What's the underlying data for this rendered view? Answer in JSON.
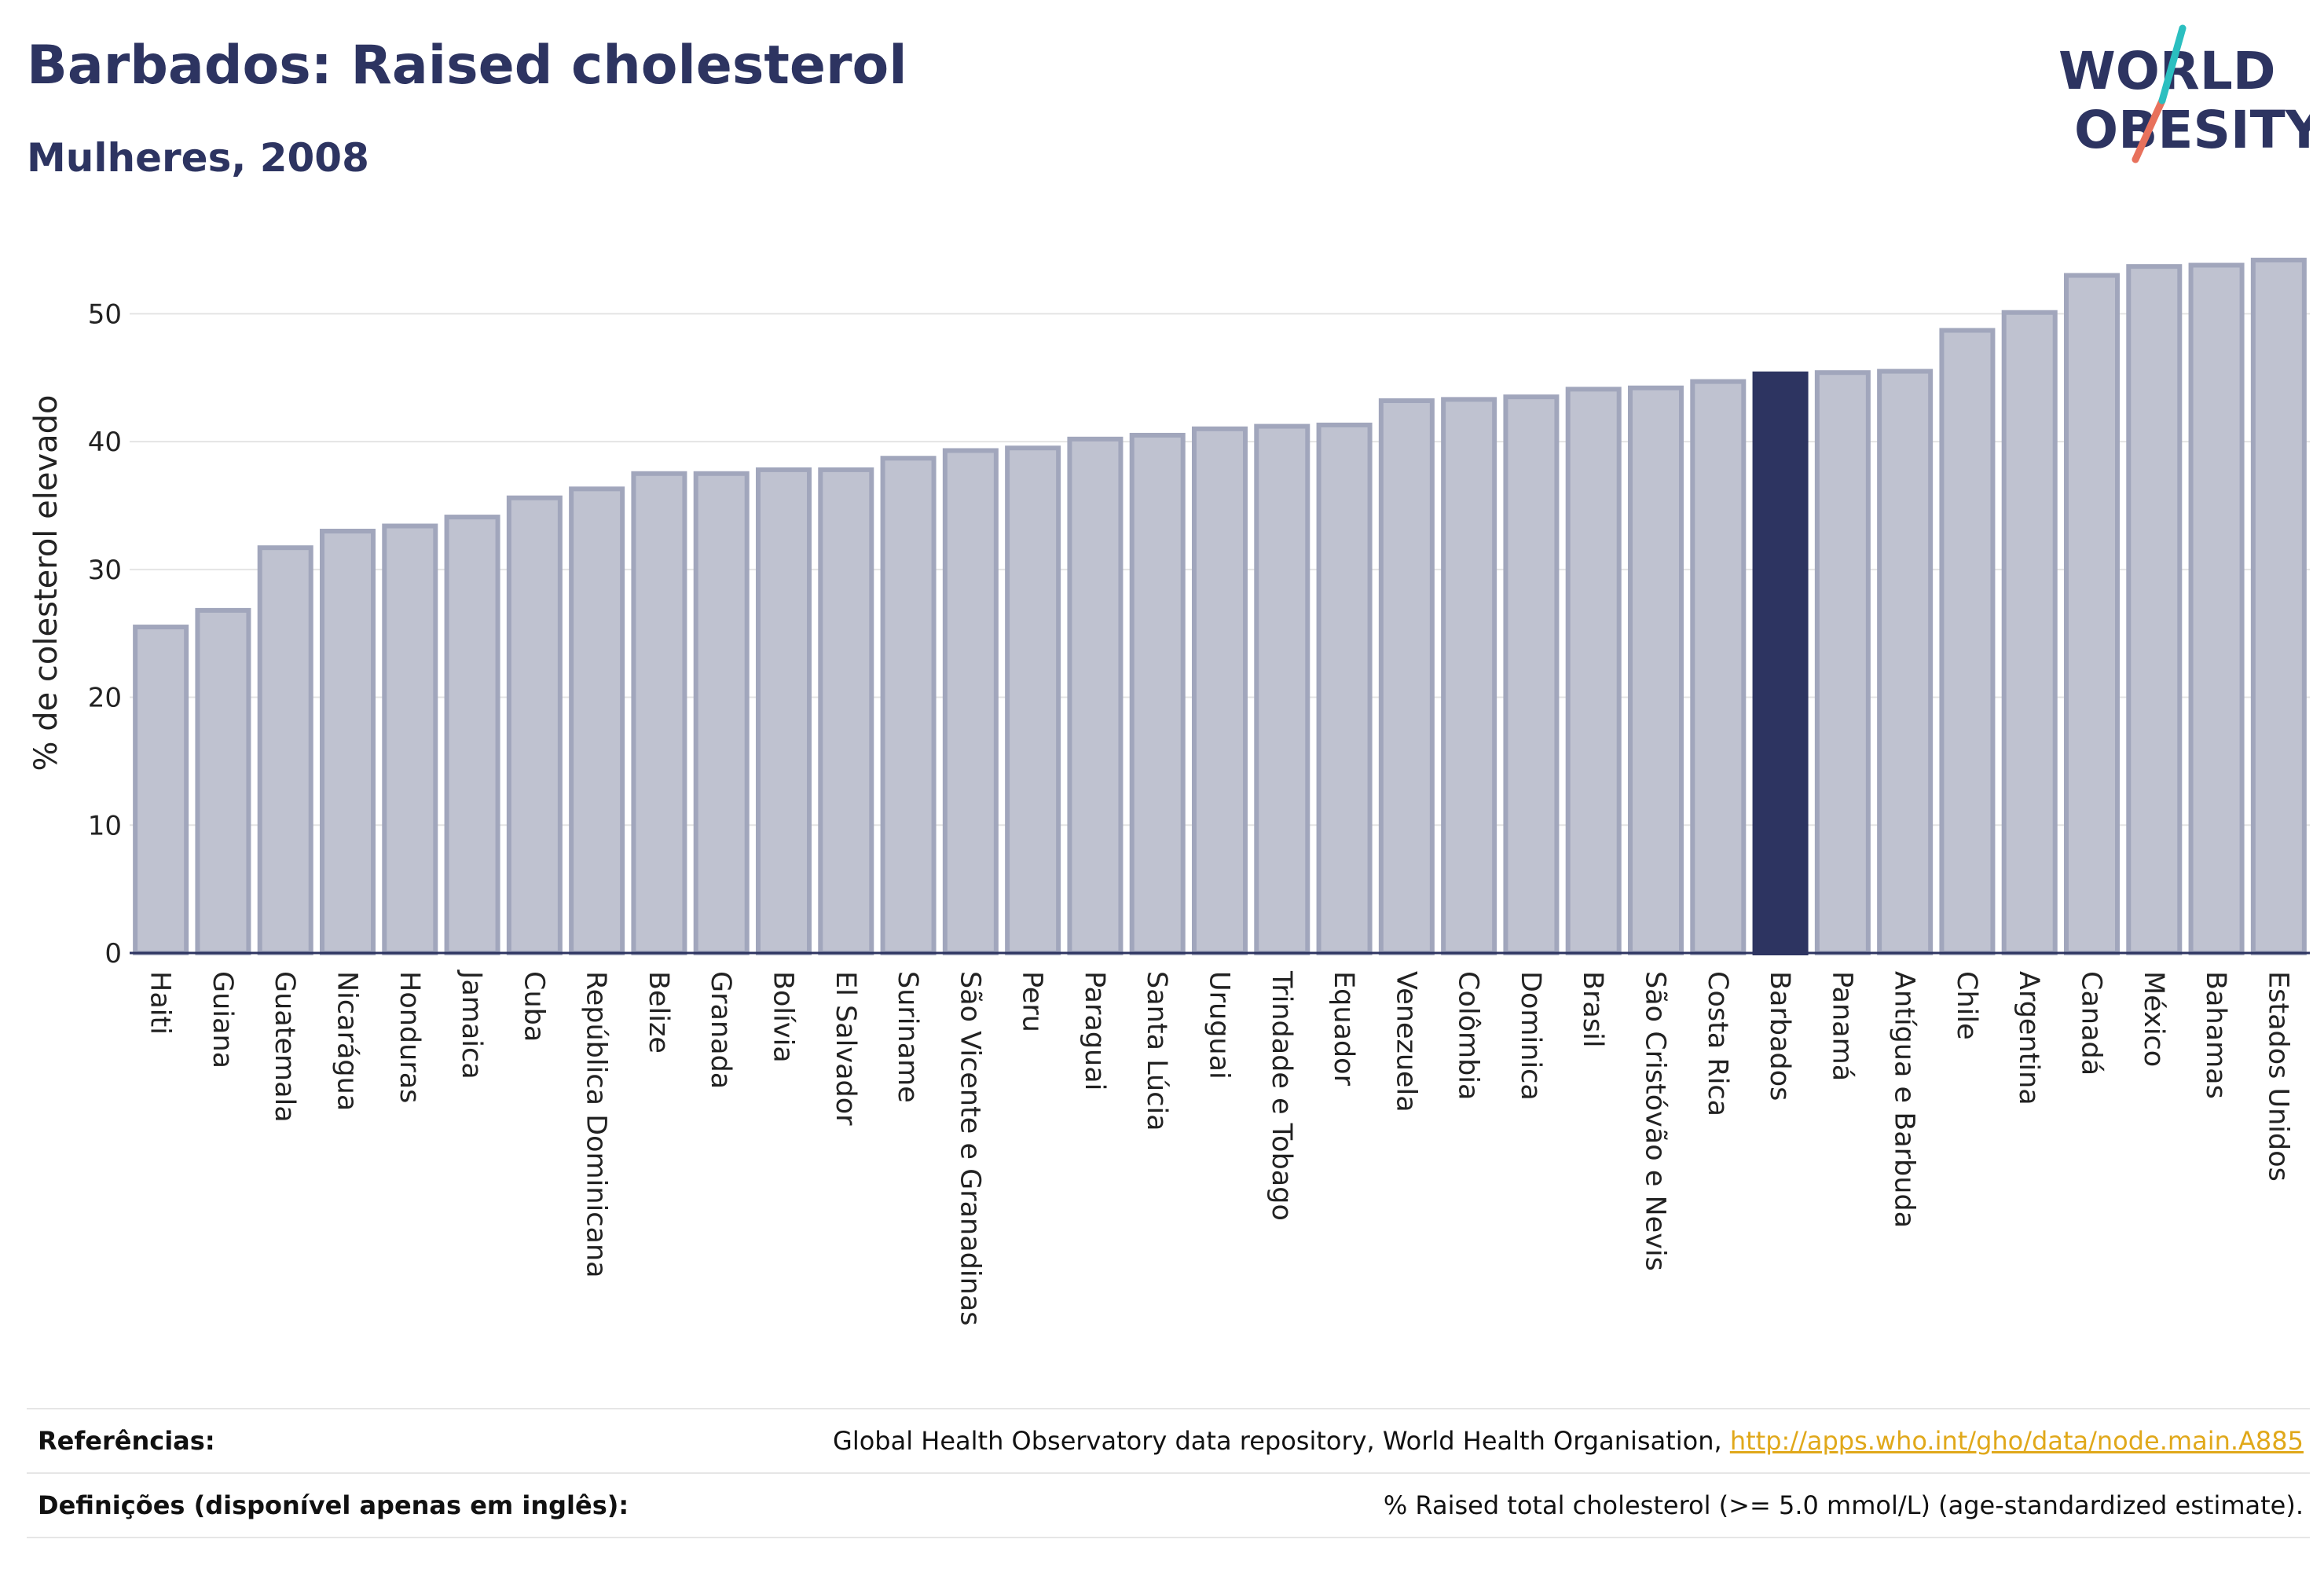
{
  "title": "Barbados: Raised cholesterol",
  "subtitle": "Mulheres, 2008",
  "logo": {
    "line1": "WORLD",
    "line2": "OBESITY"
  },
  "colors": {
    "title": "#2d3461",
    "bar": "#bfc2d0",
    "bar_edge": "#a1a6bc",
    "highlight": "#2d3461",
    "link": "#e0a81a",
    "logo_teal": "#2bbfc0",
    "logo_coral": "#e8715c"
  },
  "chart_data": {
    "type": "bar",
    "ylabel": "% de colesterol elevado",
    "xlabel": "",
    "ylim": [
      0,
      55
    ],
    "yticks": [
      0,
      10,
      20,
      30,
      40,
      50
    ],
    "grid": true,
    "highlight": "Barbados",
    "categories": [
      "Haiti",
      "Guiana",
      "Guatemala",
      "Nicarágua",
      "Honduras",
      "Jamaica",
      "Cuba",
      "República Dominicana",
      "Belize",
      "Granada",
      "Bolívia",
      "El Salvador",
      "Suriname",
      "São Vicente e Granadinas",
      "Peru",
      "Paraguai",
      "Santa Lúcia",
      "Uruguai",
      "Trindade e Tobago",
      "Equador",
      "Venezuela",
      "Colômbia",
      "Dominica",
      "Brasil",
      "São Cristóvão e Nevis",
      "Costa Rica",
      "Barbados",
      "Panamá",
      "Antígua e Barbuda",
      "Chile",
      "Argentina",
      "Canadá",
      "México",
      "Bahamas",
      "Estados Unidos"
    ],
    "values": [
      25.5,
      26.8,
      31.7,
      33.0,
      33.4,
      34.1,
      35.6,
      36.3,
      37.5,
      37.5,
      37.8,
      37.8,
      38.7,
      39.3,
      39.5,
      40.2,
      40.5,
      41.0,
      41.2,
      41.3,
      43.2,
      43.3,
      43.5,
      44.1,
      44.2,
      44.7,
      45.3,
      45.4,
      45.5,
      48.7,
      50.1,
      53.0,
      53.7,
      53.8,
      54.2
    ]
  },
  "footer": {
    "references_label": "Referências:",
    "references_text": "Global Health Observatory data repository, World Health Organisation, ",
    "references_link": "http://apps.who.int/gho/data/node.main.A885",
    "definitions_label": "Definições (disponível apenas em inglês):",
    "definitions_text": "% Raised total cholesterol (>= 5.0 mmol/L) (age-standardized estimate)."
  }
}
